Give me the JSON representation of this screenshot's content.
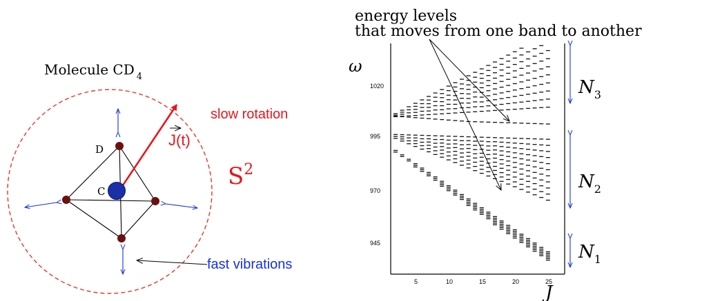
{
  "molecule": {
    "title": "Molecule CD",
    "title_subscript": "4",
    "atom_center_label": "C",
    "atom_vertex_label": "D",
    "vector_label": "J(t)",
    "rotation_label": "slow rotation",
    "vibration_label": "fast vibrations",
    "sphere_label": "S",
    "sphere_superscript": "2"
  },
  "spectrum": {
    "annotation_line1": "energy levels",
    "annotation_line2": "that moves from one band to another",
    "y_axis_label": "ω",
    "x_axis_label": "J",
    "y_ticks": [
      "1020",
      "995",
      "970",
      "945"
    ],
    "x_ticks": [
      "5",
      "10",
      "15",
      "20",
      "25"
    ],
    "bands": [
      {
        "label": "N",
        "subscript": "3"
      },
      {
        "label": "N",
        "subscript": "2"
      },
      {
        "label": "N",
        "subscript": "1"
      }
    ]
  },
  "colors": {
    "sphere": "#e8352a",
    "rotation_vector": "#e8161b",
    "vibration_arrows": "#1430e0",
    "carbon": "#1a2fa8",
    "deuterium": "#6a1010"
  }
}
